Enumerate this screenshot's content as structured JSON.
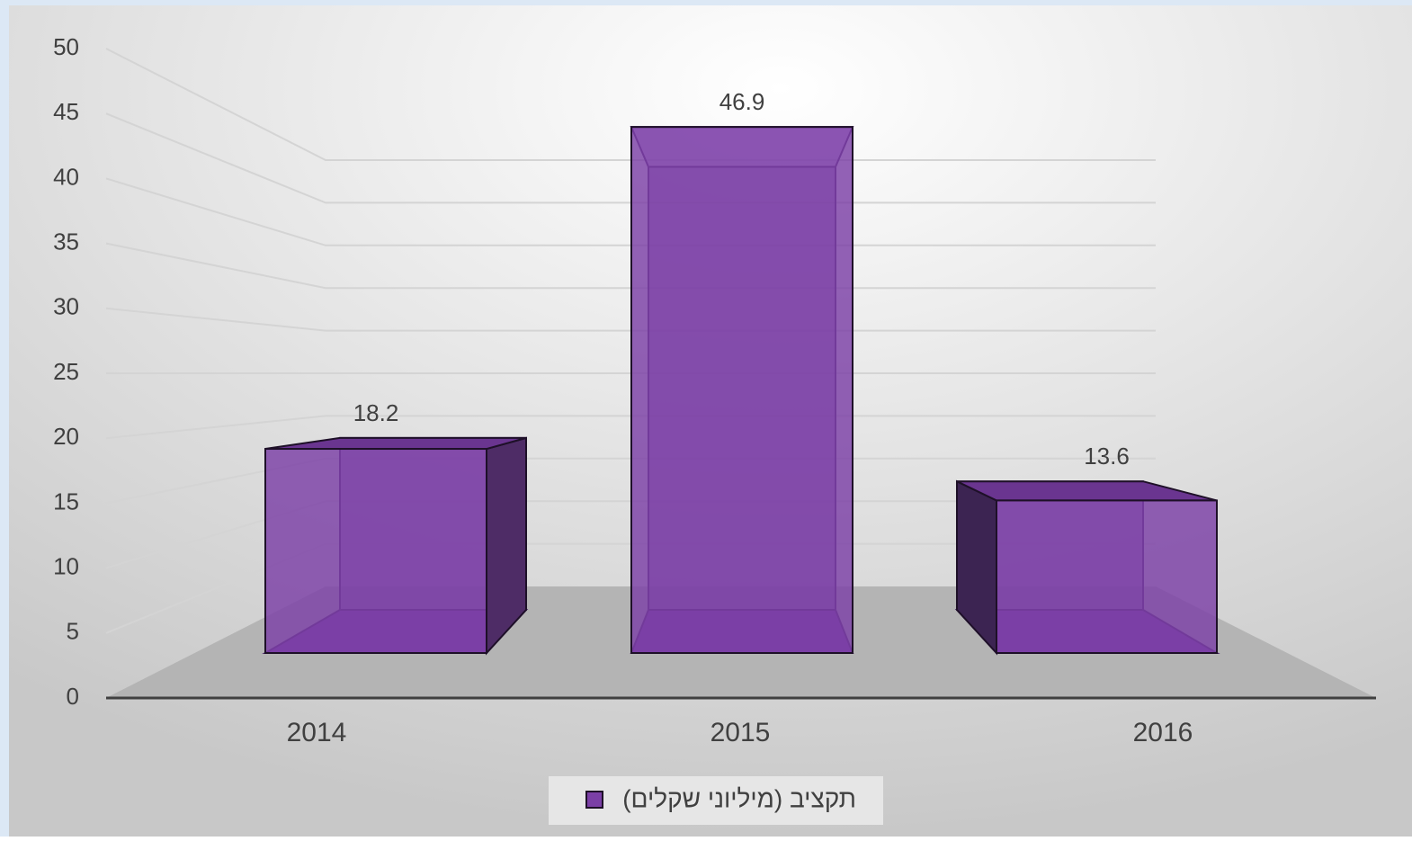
{
  "chart_data": {
    "type": "bar",
    "categories": [
      "2014",
      "2015",
      "2016"
    ],
    "series": [
      {
        "name": "תקציב (מיליוני שקלים)",
        "color": "#7b3fa6",
        "values": [
          18.2,
          46.9,
          13.6
        ]
      }
    ],
    "ylim": [
      0,
      50
    ],
    "yticks": [
      0,
      5,
      10,
      15,
      20,
      25,
      30,
      35,
      40,
      45,
      50
    ],
    "grid": true,
    "legend": "bottom"
  }
}
